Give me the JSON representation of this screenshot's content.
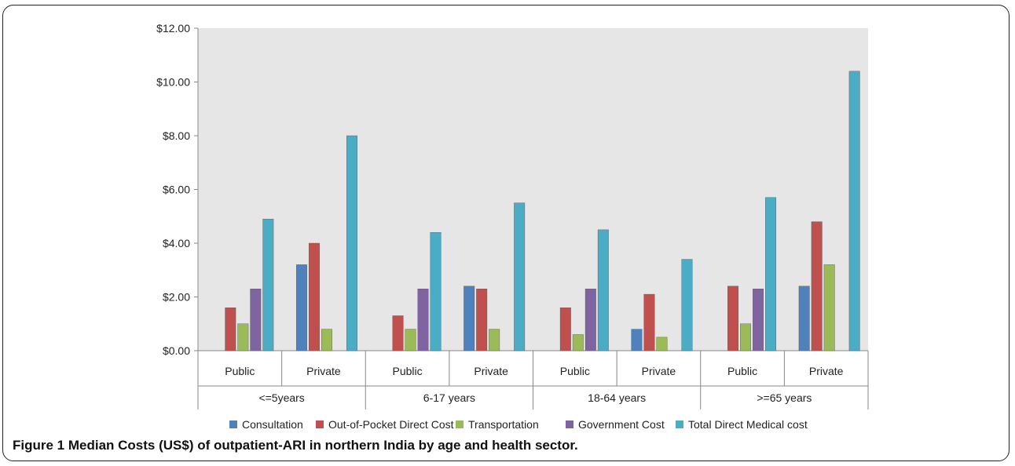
{
  "figure": {
    "label": "Figure 1",
    "caption": "Median Costs (US$) of outpatient-ARI in northern India by age and health sector."
  },
  "chart_data": {
    "type": "bar",
    "title": "",
    "xlabel": "",
    "ylabel": "",
    "ylim": [
      0,
      12
    ],
    "yticks": [
      "$0.00",
      "$2.00",
      "$4.00",
      "$6.00",
      "$8.00",
      "$10.00",
      "$12.00"
    ],
    "ytick_values": [
      0,
      2,
      4,
      6,
      8,
      10,
      12
    ],
    "grid": false,
    "legend_position": "bottom",
    "groups": [
      {
        "label": "<=5years",
        "categories": [
          "Public",
          "Private"
        ]
      },
      {
        "label": "6-17 years",
        "categories": [
          "Public",
          "Private"
        ]
      },
      {
        "label": "18-64 years",
        "categories": [
          "Public",
          "Private"
        ]
      },
      {
        "label": ">=65 years",
        "categories": [
          "Public",
          "Private"
        ]
      }
    ],
    "series": [
      {
        "name": "Consultation",
        "color": "#4F81BD",
        "values": [
          0,
          3.2,
          0,
          2.4,
          0,
          0.8,
          0,
          2.4
        ]
      },
      {
        "name": "Out-of-Pocket Direct Cost",
        "color": "#C0504D",
        "values": [
          1.6,
          4.0,
          1.3,
          2.3,
          1.6,
          2.1,
          2.4,
          4.8
        ]
      },
      {
        "name": "Transportation",
        "color": "#9BBB59",
        "values": [
          1.0,
          0.8,
          0.8,
          0.8,
          0.6,
          0.5,
          1.0,
          3.2
        ]
      },
      {
        "name": "Government Cost",
        "color": "#8064A2",
        "values": [
          2.3,
          0,
          2.3,
          0,
          2.3,
          0,
          2.3,
          0
        ]
      },
      {
        "name": "Total Direct Medical cost",
        "color": "#4BACC6",
        "values": [
          4.9,
          8.0,
          4.4,
          5.5,
          4.5,
          3.4,
          5.7,
          10.4
        ]
      }
    ],
    "plot_background": "#E6E6E6"
  }
}
